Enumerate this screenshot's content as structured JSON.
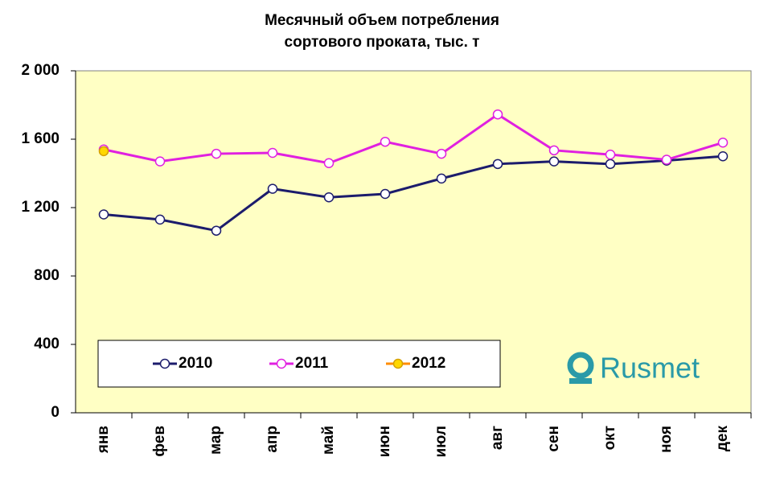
{
  "chart_data": {
    "type": "line",
    "title": [
      "Месячный объем потребления",
      "сортового проката, тыс. т"
    ],
    "categories": [
      "янв",
      "фев",
      "мар",
      "апр",
      "май",
      "июн",
      "июл",
      "авг",
      "сен",
      "окт",
      "ноя",
      "дек"
    ],
    "series": [
      {
        "name": "2010",
        "color": "#1c1c6c",
        "marker_fill": "#ffffff",
        "values": [
          1160,
          1130,
          1065,
          1310,
          1260,
          1280,
          1370,
          1455,
          1470,
          1455,
          1475,
          1500
        ]
      },
      {
        "name": "2011",
        "color": "#e020e0",
        "marker_fill": "#ffffff",
        "values": [
          1540,
          1470,
          1515,
          1520,
          1460,
          1585,
          1515,
          1745,
          1535,
          1510,
          1480,
          1580
        ]
      },
      {
        "name": "2012",
        "color": "#ff8c00",
        "marker_fill": "#ffd700",
        "values": [
          1530,
          null,
          null,
          null,
          null,
          null,
          null,
          null,
          null,
          null,
          null,
          null
        ]
      }
    ],
    "ylim": [
      0,
      2000
    ],
    "yticks": [
      0,
      400,
      800,
      {
        "value": 1200,
        "label": "1 200"
      },
      {
        "value": 1600,
        "label": "1 600"
      },
      {
        "value": 2000,
        "label": "2 000"
      }
    ],
    "plot_background": "#ffffc4",
    "logo": "Rusmet"
  }
}
